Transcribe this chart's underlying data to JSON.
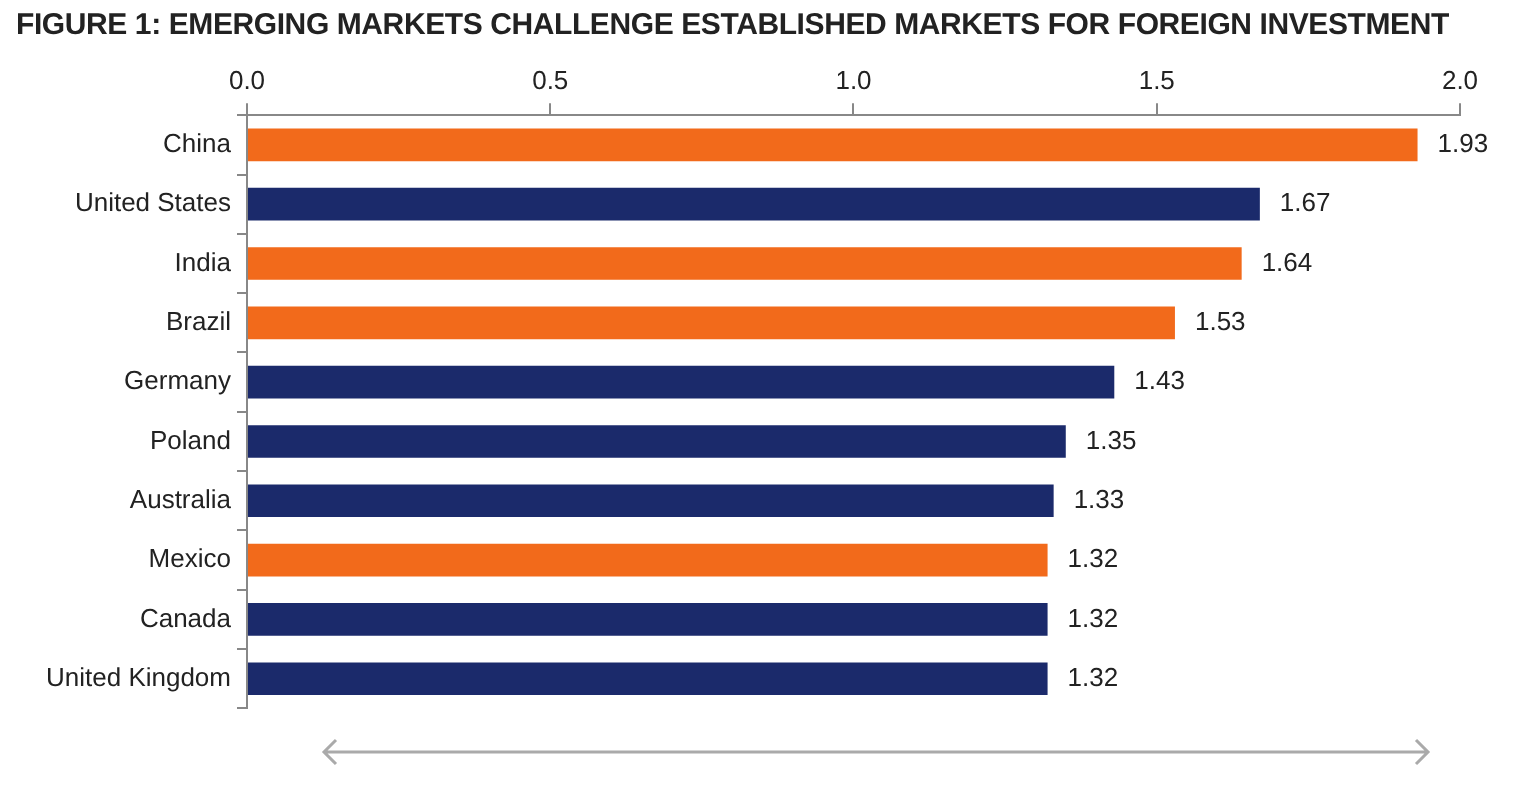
{
  "chart_data": {
    "type": "bar",
    "orientation": "horizontal",
    "title": "FIGURE 1: EMERGING MARKETS CHALLENGE ESTABLISHED MARKETS FOR FOREIGN INVESTMENT",
    "categories": [
      "China",
      "United States",
      "India",
      "Brazil",
      "Germany",
      "Poland",
      "Australia",
      "Mexico",
      "Canada",
      "United Kingdom"
    ],
    "values": [
      1.93,
      1.67,
      1.64,
      1.53,
      1.43,
      1.35,
      1.33,
      1.32,
      1.32,
      1.32
    ],
    "colors": [
      "#f26a1b",
      "#1b2a6b",
      "#f26a1b",
      "#f26a1b",
      "#1b2a6b",
      "#1b2a6b",
      "#1b2a6b",
      "#f26a1b",
      "#1b2a6b",
      "#1b2a6b"
    ],
    "xlim": [
      0,
      2
    ],
    "xticks": [
      {
        "value": 0,
        "label": "0.0"
      },
      {
        "value": 0.5,
        "label": "0.5"
      },
      {
        "value": 1,
        "label": "1.0"
      },
      {
        "value": 1.5,
        "label": "1.5"
      },
      {
        "value": 2,
        "label": "2.0"
      }
    ],
    "grid": false,
    "data_labels": true
  }
}
